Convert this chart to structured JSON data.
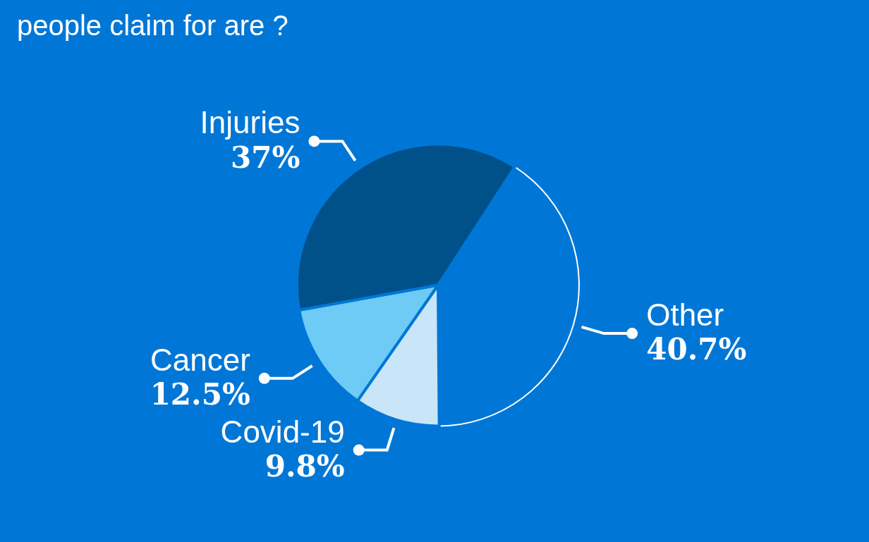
{
  "chart_data": {
    "type": "pie",
    "title": "people claim for are ?",
    "categories": [
      "Other",
      "Covid-19",
      "Cancer",
      "Injuries"
    ],
    "values": [
      40.7,
      9.8,
      12.5,
      37
    ],
    "value_labels": [
      "40.7%",
      "9.8%",
      "12.5%",
      "37%"
    ],
    "colors": [
      "#0077d6",
      "#c8e6f8",
      "#6ecbf5",
      "#005089"
    ]
  }
}
